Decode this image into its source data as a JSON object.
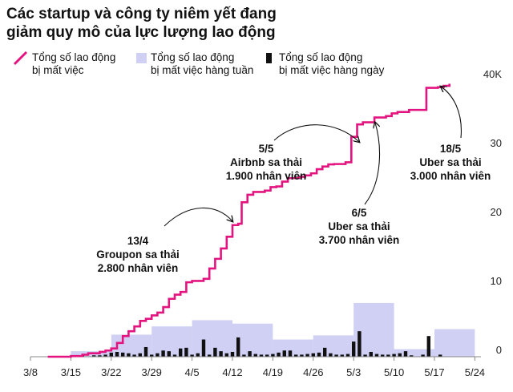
{
  "title_lines": [
    "Các startup và công ty niêm yết đang",
    "giảm quy mô của lực lượng lao động"
  ],
  "legend": {
    "total": [
      "Tổng số lao động",
      "bị mất việc"
    ],
    "weekly": [
      "Tổng số lao động",
      "bị mất việc hàng tuần"
    ],
    "daily": [
      "Tổng số lao động",
      "bị mất việc hàng ngày"
    ]
  },
  "colors": {
    "cumulative": "#e3147f",
    "weekly": "#cfd0f3",
    "daily": "#111111",
    "axis": "#888888"
  },
  "chart_data": {
    "type": "line",
    "title": "Các startup và công ty niêm yết đang giảm quy mô của lực lượng lao động",
    "x_ticks": [
      "3/8",
      "3/15",
      "3/22",
      "3/29",
      "4/5",
      "4/12",
      "4/19",
      "4/26",
      "5/3",
      "5/10",
      "5/17",
      "5/24"
    ],
    "y_ticks": [
      "40K",
      "30",
      "20",
      "10",
      "0"
    ],
    "y_tick_values": [
      40,
      30,
      20,
      10,
      0
    ],
    "ylim": [
      0,
      40
    ],
    "y_unit": "thousand employees",
    "xlim_days": [
      0,
      77
    ],
    "series": [
      {
        "name": "Tổng số lao động bị mất việc",
        "kind": "cumulative_step_line",
        "points": [
          [
            3,
            0
          ],
          [
            7,
            0.1
          ],
          [
            9,
            0.3
          ],
          [
            10,
            0.5
          ],
          [
            12,
            0.7
          ],
          [
            13,
            0.9
          ],
          [
            14,
            1.2
          ],
          [
            15,
            2.0
          ],
          [
            16,
            3.0
          ],
          [
            17,
            3.7
          ],
          [
            18,
            4.4
          ],
          [
            19,
            5.2
          ],
          [
            20,
            5.5
          ],
          [
            21,
            6.0
          ],
          [
            22,
            6.4
          ],
          [
            23,
            7.2
          ],
          [
            24,
            8.4
          ],
          [
            25,
            9.0
          ],
          [
            26,
            9.4
          ],
          [
            27,
            10.8
          ],
          [
            28,
            11.0
          ],
          [
            30,
            11.3
          ],
          [
            31,
            12.8
          ],
          [
            32,
            14.2
          ],
          [
            33,
            15.7
          ],
          [
            34,
            17.4
          ],
          [
            35,
            19.1
          ],
          [
            36,
            19.3
          ],
          [
            36.6,
            22.4
          ],
          [
            37.6,
            23.5
          ],
          [
            38.6,
            23.9
          ],
          [
            40.6,
            24.1
          ],
          [
            41.6,
            24.6
          ],
          [
            42.6,
            24.7
          ],
          [
            43.6,
            25.4
          ],
          [
            44.6,
            25.9
          ],
          [
            46.6,
            26.1
          ],
          [
            47.6,
            26.3
          ],
          [
            48.6,
            26.6
          ],
          [
            49.6,
            27.2
          ],
          [
            50.6,
            27.6
          ],
          [
            51.6,
            27.9
          ],
          [
            52.6,
            27.95
          ],
          [
            54.6,
            28.2
          ],
          [
            55.6,
            31.9
          ],
          [
            56.6,
            33.7
          ],
          [
            57.6,
            34.0
          ],
          [
            59.6,
            34.7
          ],
          [
            61.6,
            34.9
          ],
          [
            62.6,
            35.3
          ],
          [
            63.6,
            35.5
          ],
          [
            65.6,
            35.8
          ],
          [
            66.6,
            35.8
          ],
          [
            68.6,
            39.0
          ],
          [
            70.6,
            39.1
          ],
          [
            71.6,
            39.3
          ],
          [
            72.6,
            39.6
          ]
        ]
      },
      {
        "name": "Tổng số lao động bị mất việc hàng tuần",
        "kind": "weekly_bars",
        "bars": [
          {
            "start": 7,
            "end": 14,
            "value": 0.8
          },
          {
            "start": 14,
            "end": 21,
            "value": 3.2
          },
          {
            "start": 21,
            "end": 28,
            "value": 4.4
          },
          {
            "start": 28,
            "end": 35,
            "value": 5.3
          },
          {
            "start": 35,
            "end": 42,
            "value": 4.8
          },
          {
            "start": 42,
            "end": 49,
            "value": 2.5
          },
          {
            "start": 49,
            "end": 56,
            "value": 3.1
          },
          {
            "start": 56,
            "end": 63,
            "value": 7.8
          },
          {
            "start": 63,
            "end": 70,
            "value": 1.1
          },
          {
            "start": 70,
            "end": 77,
            "value": 4.0
          }
        ]
      },
      {
        "name": "Tổng số lao động bị mất việc hàng ngày",
        "kind": "daily_bars",
        "bars": [
          [
            9,
            0.2
          ],
          [
            11,
            0.2
          ],
          [
            12,
            0.2
          ],
          [
            13,
            0.3
          ],
          [
            14,
            0.6
          ],
          [
            15,
            0.7
          ],
          [
            16,
            0.6
          ],
          [
            17,
            0.5
          ],
          [
            18,
            0.3
          ],
          [
            19,
            0.5
          ],
          [
            20,
            1.4
          ],
          [
            21,
            0.3
          ],
          [
            22,
            0.5
          ],
          [
            23,
            0.9
          ],
          [
            24,
            0.8
          ],
          [
            25,
            0.3
          ],
          [
            26,
            1.2
          ],
          [
            27,
            1.3
          ],
          [
            28,
            0.3
          ],
          [
            29,
            0.5
          ],
          [
            30,
            2.5
          ],
          [
            31,
            0.3
          ],
          [
            32,
            1.3
          ],
          [
            33,
            0.8
          ],
          [
            34,
            0.5
          ],
          [
            35,
            0.7
          ],
          [
            36,
            2.8
          ],
          [
            37,
            0.3
          ],
          [
            38,
            0.8
          ],
          [
            39,
            0.4
          ],
          [
            40,
            0.3
          ],
          [
            41,
            0.3
          ],
          [
            42,
            0.4
          ],
          [
            43,
            0.6
          ],
          [
            44,
            0.9
          ],
          [
            45,
            0.9
          ],
          [
            46,
            0.3
          ],
          [
            47,
            0.3
          ],
          [
            48,
            0.4
          ],
          [
            49,
            0.5
          ],
          [
            50,
            0.6
          ],
          [
            51,
            1.3
          ],
          [
            52,
            0.5
          ],
          [
            53,
            0.3
          ],
          [
            54,
            0.3
          ],
          [
            55,
            0.4
          ],
          [
            56,
            2.2
          ],
          [
            57,
            3.7
          ],
          [
            58,
            0.3
          ],
          [
            59,
            0.7
          ],
          [
            60,
            0.4
          ],
          [
            61,
            0.3
          ],
          [
            62,
            0.3
          ],
          [
            63,
            0.4
          ],
          [
            64,
            0.5
          ],
          [
            65,
            0.8
          ],
          [
            66,
            0.2
          ],
          [
            68,
            0.3
          ],
          [
            69,
            3.0
          ],
          [
            71,
            0.3
          ]
        ]
      }
    ],
    "annotations": [
      {
        "id": "groupon",
        "lines": [
          "13/4",
          "Groupon sa thải",
          "2.800 nhân viên"
        ]
      },
      {
        "id": "airbnb",
        "lines": [
          "5/5",
          "Airbnb sa thải",
          "1.900 nhân viên"
        ]
      },
      {
        "id": "uber1",
        "lines": [
          "6/5",
          "Uber sa thải",
          "3.700 nhân viên"
        ]
      },
      {
        "id": "uber2",
        "lines": [
          "18/5",
          "Uber sa thải",
          "3.000 nhân viên"
        ]
      }
    ],
    "grid": false,
    "legend_position": "top-left"
  }
}
